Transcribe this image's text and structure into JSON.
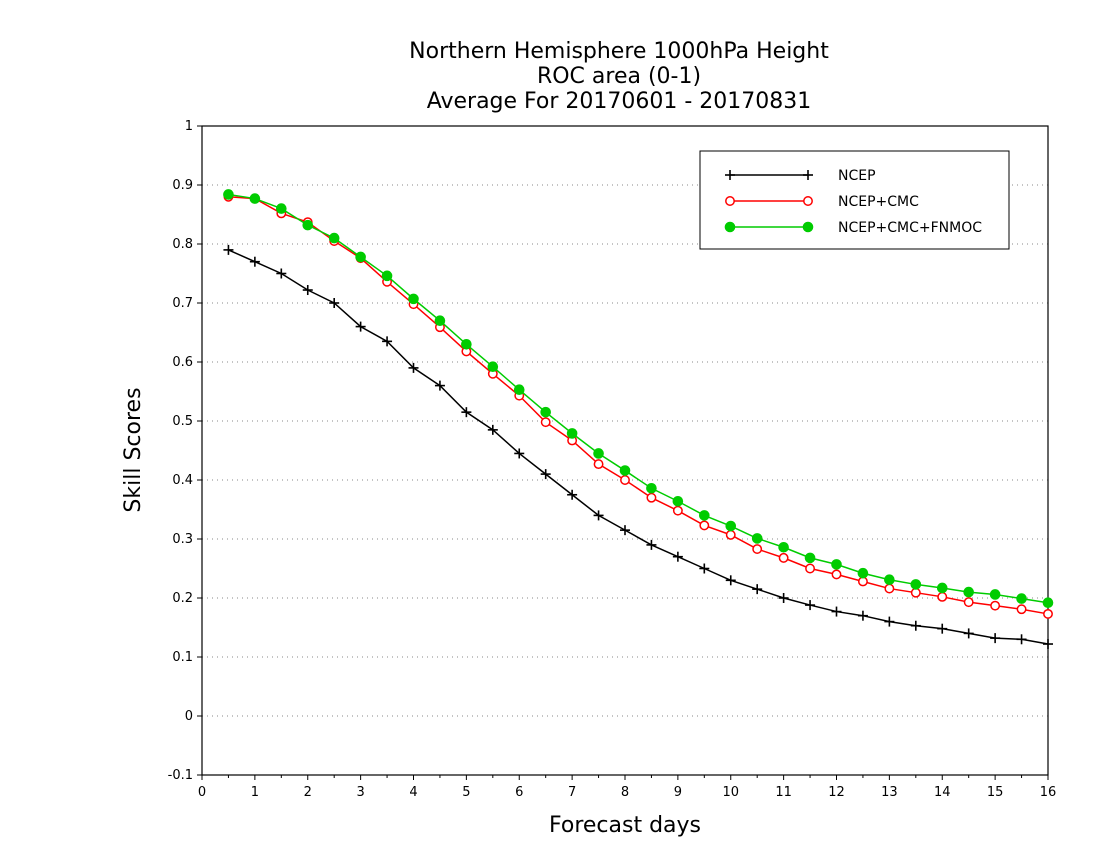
{
  "chart_data": {
    "type": "line",
    "title_lines": [
      "Northern Hemisphere 1000hPa Height",
      "ROC area (0-1)",
      "Average For 20170601 - 20170831"
    ],
    "xlabel": "Forecast days",
    "ylabel": "Skill Scores",
    "xlim": [
      0,
      16
    ],
    "ylim": [
      -0.1,
      1
    ],
    "x_ticks": [
      0,
      1,
      2,
      3,
      4,
      5,
      6,
      7,
      8,
      9,
      10,
      11,
      12,
      13,
      14,
      15,
      16
    ],
    "y_ticks": [
      -0.1,
      0,
      0.1,
      0.2,
      0.3,
      0.4,
      0.5,
      0.6,
      0.7,
      0.8,
      0.9,
      1
    ],
    "y_tick_labels": [
      "-0.1",
      "0",
      "0.1",
      "0.2",
      "0.3",
      "0.4",
      "0.5",
      "0.6",
      "0.7",
      "0.8",
      "0.9",
      "1"
    ],
    "grid": "horizontal dotted",
    "legend_position": "top-right",
    "x": [
      0.5,
      1,
      1.5,
      2,
      2.5,
      3,
      3.5,
      4,
      4.5,
      5,
      5.5,
      6,
      6.5,
      7,
      7.5,
      8,
      8.5,
      9,
      9.5,
      10,
      10.5,
      11,
      11.5,
      12,
      12.5,
      13,
      13.5,
      14,
      14.5,
      15,
      15.5,
      16
    ],
    "series": [
      {
        "name": "NCEP",
        "color": "#000000",
        "marker": "plus",
        "values": [
          0.79,
          0.77,
          0.75,
          0.722,
          0.7,
          0.66,
          0.635,
          0.59,
          0.56,
          0.515,
          0.485,
          0.445,
          0.41,
          0.375,
          0.34,
          0.315,
          0.29,
          0.27,
          0.25,
          0.23,
          0.215,
          0.2,
          0.188,
          0.177,
          0.17,
          0.16,
          0.153,
          0.148,
          0.14,
          0.132,
          0.13,
          0.122
        ]
      },
      {
        "name": "NCEP+CMC",
        "color": "#ff0000",
        "marker": "open-circle",
        "values": [
          0.88,
          0.877,
          0.852,
          0.837,
          0.805,
          0.776,
          0.736,
          0.698,
          0.659,
          0.618,
          0.58,
          0.543,
          0.498,
          0.467,
          0.427,
          0.4,
          0.37,
          0.348,
          0.323,
          0.307,
          0.283,
          0.268,
          0.25,
          0.24,
          0.228,
          0.216,
          0.209,
          0.202,
          0.193,
          0.187,
          0.181,
          0.173
        ]
      },
      {
        "name": "NCEP+CMC+FNMOC",
        "color": "#00cc00",
        "marker": "filled-circle",
        "values": [
          0.884,
          0.877,
          0.86,
          0.832,
          0.81,
          0.778,
          0.746,
          0.707,
          0.67,
          0.63,
          0.592,
          0.553,
          0.515,
          0.479,
          0.445,
          0.416,
          0.386,
          0.364,
          0.34,
          0.322,
          0.301,
          0.286,
          0.268,
          0.257,
          0.242,
          0.231,
          0.223,
          0.217,
          0.21,
          0.206,
          0.199,
          0.192
        ]
      }
    ]
  }
}
